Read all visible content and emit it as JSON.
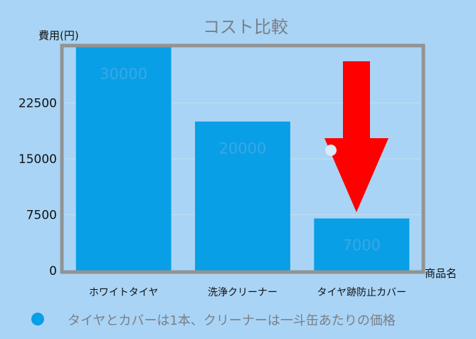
{
  "chart_data": {
    "type": "bar",
    "title": "コスト比較",
    "ylabel": "費用(円)",
    "xlabel": "商品名",
    "categories": [
      "ホワイトタイヤ",
      "洗浄クリーナー",
      "タイヤ跡防止カバー"
    ],
    "values": [
      30000,
      20000,
      7000
    ],
    "data_labels": [
      "30000",
      "20000",
      "7000"
    ],
    "ylim": [
      0,
      30000
    ],
    "yticks": [
      0,
      7500,
      15000,
      22500
    ],
    "ytick_labels": [
      "0",
      "7500",
      "15000",
      "22500"
    ],
    "grid": true,
    "legend_position": "bottom",
    "series": [
      {
        "name": "タイヤとカバーは1本、クリーナーは一斗缶あたりの価格",
        "values": [
          30000,
          20000,
          7000
        ]
      }
    ],
    "annotation": {
      "type": "arrow",
      "direction": "down",
      "target_category": "タイヤ跡防止カバー"
    }
  },
  "colors": {
    "background": "#a9d4f6",
    "plot_frame": "#939393",
    "bar": "#089fe6",
    "gridline": "#c4dff2",
    "arrow": "#ff0000",
    "title": "#7a7f86"
  }
}
